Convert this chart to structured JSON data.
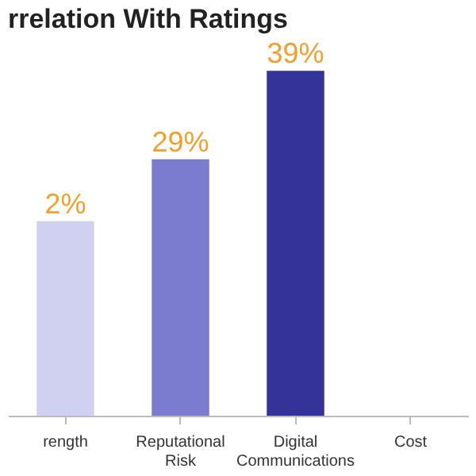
{
  "chart_data": {
    "type": "bar",
    "title": "rrelation With Ratings",
    "categories": [
      "rength",
      "Reputational Risk",
      "Digital Communications",
      "Cost"
    ],
    "values": [
      22,
      29,
      39,
      null
    ],
    "value_labels": [
      null,
      "29%",
      "39%",
      null
    ],
    "annotations": [
      {
        "text": "2%",
        "x": "rength",
        "y": 22
      }
    ],
    "colors": [
      "#d0d0f0",
      "#7b7bd0",
      "#33339a",
      "#33339a"
    ],
    "grid": false
  }
}
